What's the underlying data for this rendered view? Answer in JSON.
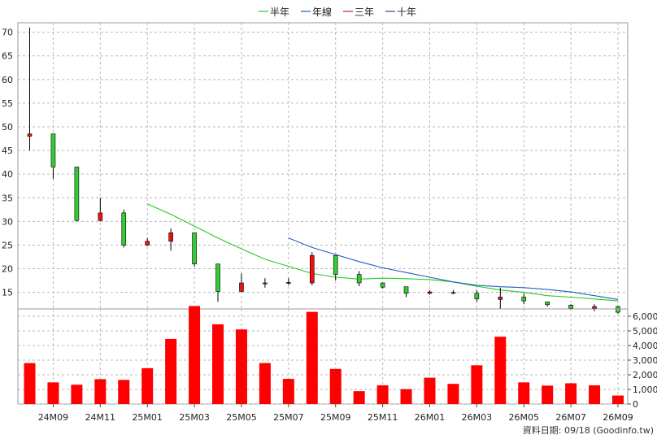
{
  "legend": [
    {
      "label": "半年",
      "color": "#22cc22"
    },
    {
      "label": "年線",
      "color": "#1f5fbf"
    },
    {
      "label": "三年",
      "color": "#cc2222"
    },
    {
      "label": "十年",
      "color": "#5533aa"
    }
  ],
  "footer": "資料日期: 09/18  (Goodinfo.tw)",
  "chart_data": {
    "type": "candlestick",
    "months": [
      "24M08",
      "24M09",
      "24M10",
      "24M11",
      "24M12",
      "25M01",
      "25M02",
      "25M03",
      "25M04",
      "25M05",
      "25M06",
      "25M07",
      "25M08",
      "25M09",
      "25M10",
      "25M11",
      "25M12",
      "26M01",
      "26M02",
      "26M03",
      "26M04",
      "26M05",
      "26M06",
      "26M07",
      "26M08",
      "26M09"
    ],
    "x_tick_labels": [
      "24M09",
      "24M11",
      "25M01",
      "25M03",
      "25M05",
      "25M07",
      "25M09",
      "25M11",
      "26M01",
      "26M03",
      "26M05",
      "26M07",
      "26M09"
    ],
    "price_axis": {
      "ticks": [
        15,
        20,
        25,
        30,
        35,
        40,
        45,
        50,
        55,
        60,
        65,
        70
      ],
      "range": [
        11.5,
        72
      ]
    },
    "volume_axis": {
      "ticks": [
        0,
        1000,
        2000,
        3000,
        4000,
        5000,
        6000
      ],
      "tick_labels": [
        "0",
        "1,000",
        "2,000",
        "3,000",
        "4,000",
        "5,000",
        "6,000"
      ],
      "range": [
        0,
        6500
      ]
    },
    "candles": [
      {
        "o": 48.0,
        "h": 71.0,
        "l": 45.0,
        "c": 48.5
      },
      {
        "o": 48.5,
        "h": 48.5,
        "l": 39.0,
        "c": 41.5
      },
      {
        "o": 41.5,
        "h": 41.5,
        "l": 30.0,
        "c": 30.2
      },
      {
        "o": 30.2,
        "h": 35.0,
        "l": 30.0,
        "c": 31.8
      },
      {
        "o": 31.8,
        "h": 32.5,
        "l": 24.5,
        "c": 25.0
      },
      {
        "o": 25.0,
        "h": 26.5,
        "l": 24.8,
        "c": 25.8
      },
      {
        "o": 25.8,
        "h": 28.5,
        "l": 23.8,
        "c": 27.6
      },
      {
        "o": 27.6,
        "h": 27.6,
        "l": 20.5,
        "c": 21.0
      },
      {
        "o": 21.0,
        "h": 21.0,
        "l": 13.0,
        "c": 15.2
      },
      {
        "o": 15.2,
        "h": 19.0,
        "l": 15.0,
        "c": 17.0
      },
      {
        "o": 16.8,
        "h": 18.0,
        "l": 16.0,
        "c": 17.0
      },
      {
        "o": 17.0,
        "h": 18.0,
        "l": 16.5,
        "c": 17.1
      },
      {
        "o": 17.0,
        "h": 23.5,
        "l": 16.5,
        "c": 22.8
      },
      {
        "o": 22.8,
        "h": 22.8,
        "l": 17.5,
        "c": 18.8
      },
      {
        "o": 18.8,
        "h": 19.5,
        "l": 16.3,
        "c": 17.0
      },
      {
        "o": 17.0,
        "h": 17.0,
        "l": 15.8,
        "c": 16.1
      },
      {
        "o": 16.2,
        "h": 16.2,
        "l": 14.0,
        "c": 14.8
      },
      {
        "o": 14.8,
        "h": 15.5,
        "l": 14.5,
        "c": 15.1
      },
      {
        "o": 15.0,
        "h": 15.5,
        "l": 14.6,
        "c": 14.8
      },
      {
        "o": 14.8,
        "h": 15.5,
        "l": 13.0,
        "c": 13.6
      },
      {
        "o": 13.5,
        "h": 16.0,
        "l": 11.5,
        "c": 14.0
      },
      {
        "o": 14.0,
        "h": 14.8,
        "l": 12.5,
        "c": 13.2
      },
      {
        "o": 13.0,
        "h": 13.0,
        "l": 12.0,
        "c": 12.4
      },
      {
        "o": 12.3,
        "h": 12.5,
        "l": 11.5,
        "c": 11.6
      },
      {
        "o": 11.6,
        "h": 12.5,
        "l": 11.0,
        "c": 12.0
      },
      {
        "o": 12.0,
        "h": 12.2,
        "l": 10.5,
        "c": 10.8
      }
    ],
    "volumes": [
      2800,
      1480,
      1320,
      1700,
      1650,
      2450,
      4450,
      6700,
      5450,
      5100,
      2800,
      1720,
      6300,
      2400,
      880,
      1280,
      1020,
      1800,
      1380,
      2650,
      4600,
      1480,
      1260,
      1420,
      1280,
      580
    ],
    "series": [
      {
        "name": "半年",
        "color": "#22cc22",
        "start": 5,
        "values": [
          33.7,
          31.5,
          29.0,
          26.5,
          24.2,
          22.0,
          20.5,
          19.0,
          18.2,
          17.8,
          18.0,
          17.9,
          17.7,
          17.2,
          16.3,
          15.5,
          15.0,
          14.3,
          14.0,
          13.6,
          13.2
        ]
      },
      {
        "name": "年線",
        "color": "#1f5fbf",
        "start": 11,
        "values": [
          26.5,
          24.5,
          23.0,
          21.5,
          20.2,
          19.2,
          18.2,
          17.2,
          16.5,
          16.2,
          16.0,
          15.6,
          15.1,
          14.3,
          13.5
        ]
      }
    ]
  }
}
